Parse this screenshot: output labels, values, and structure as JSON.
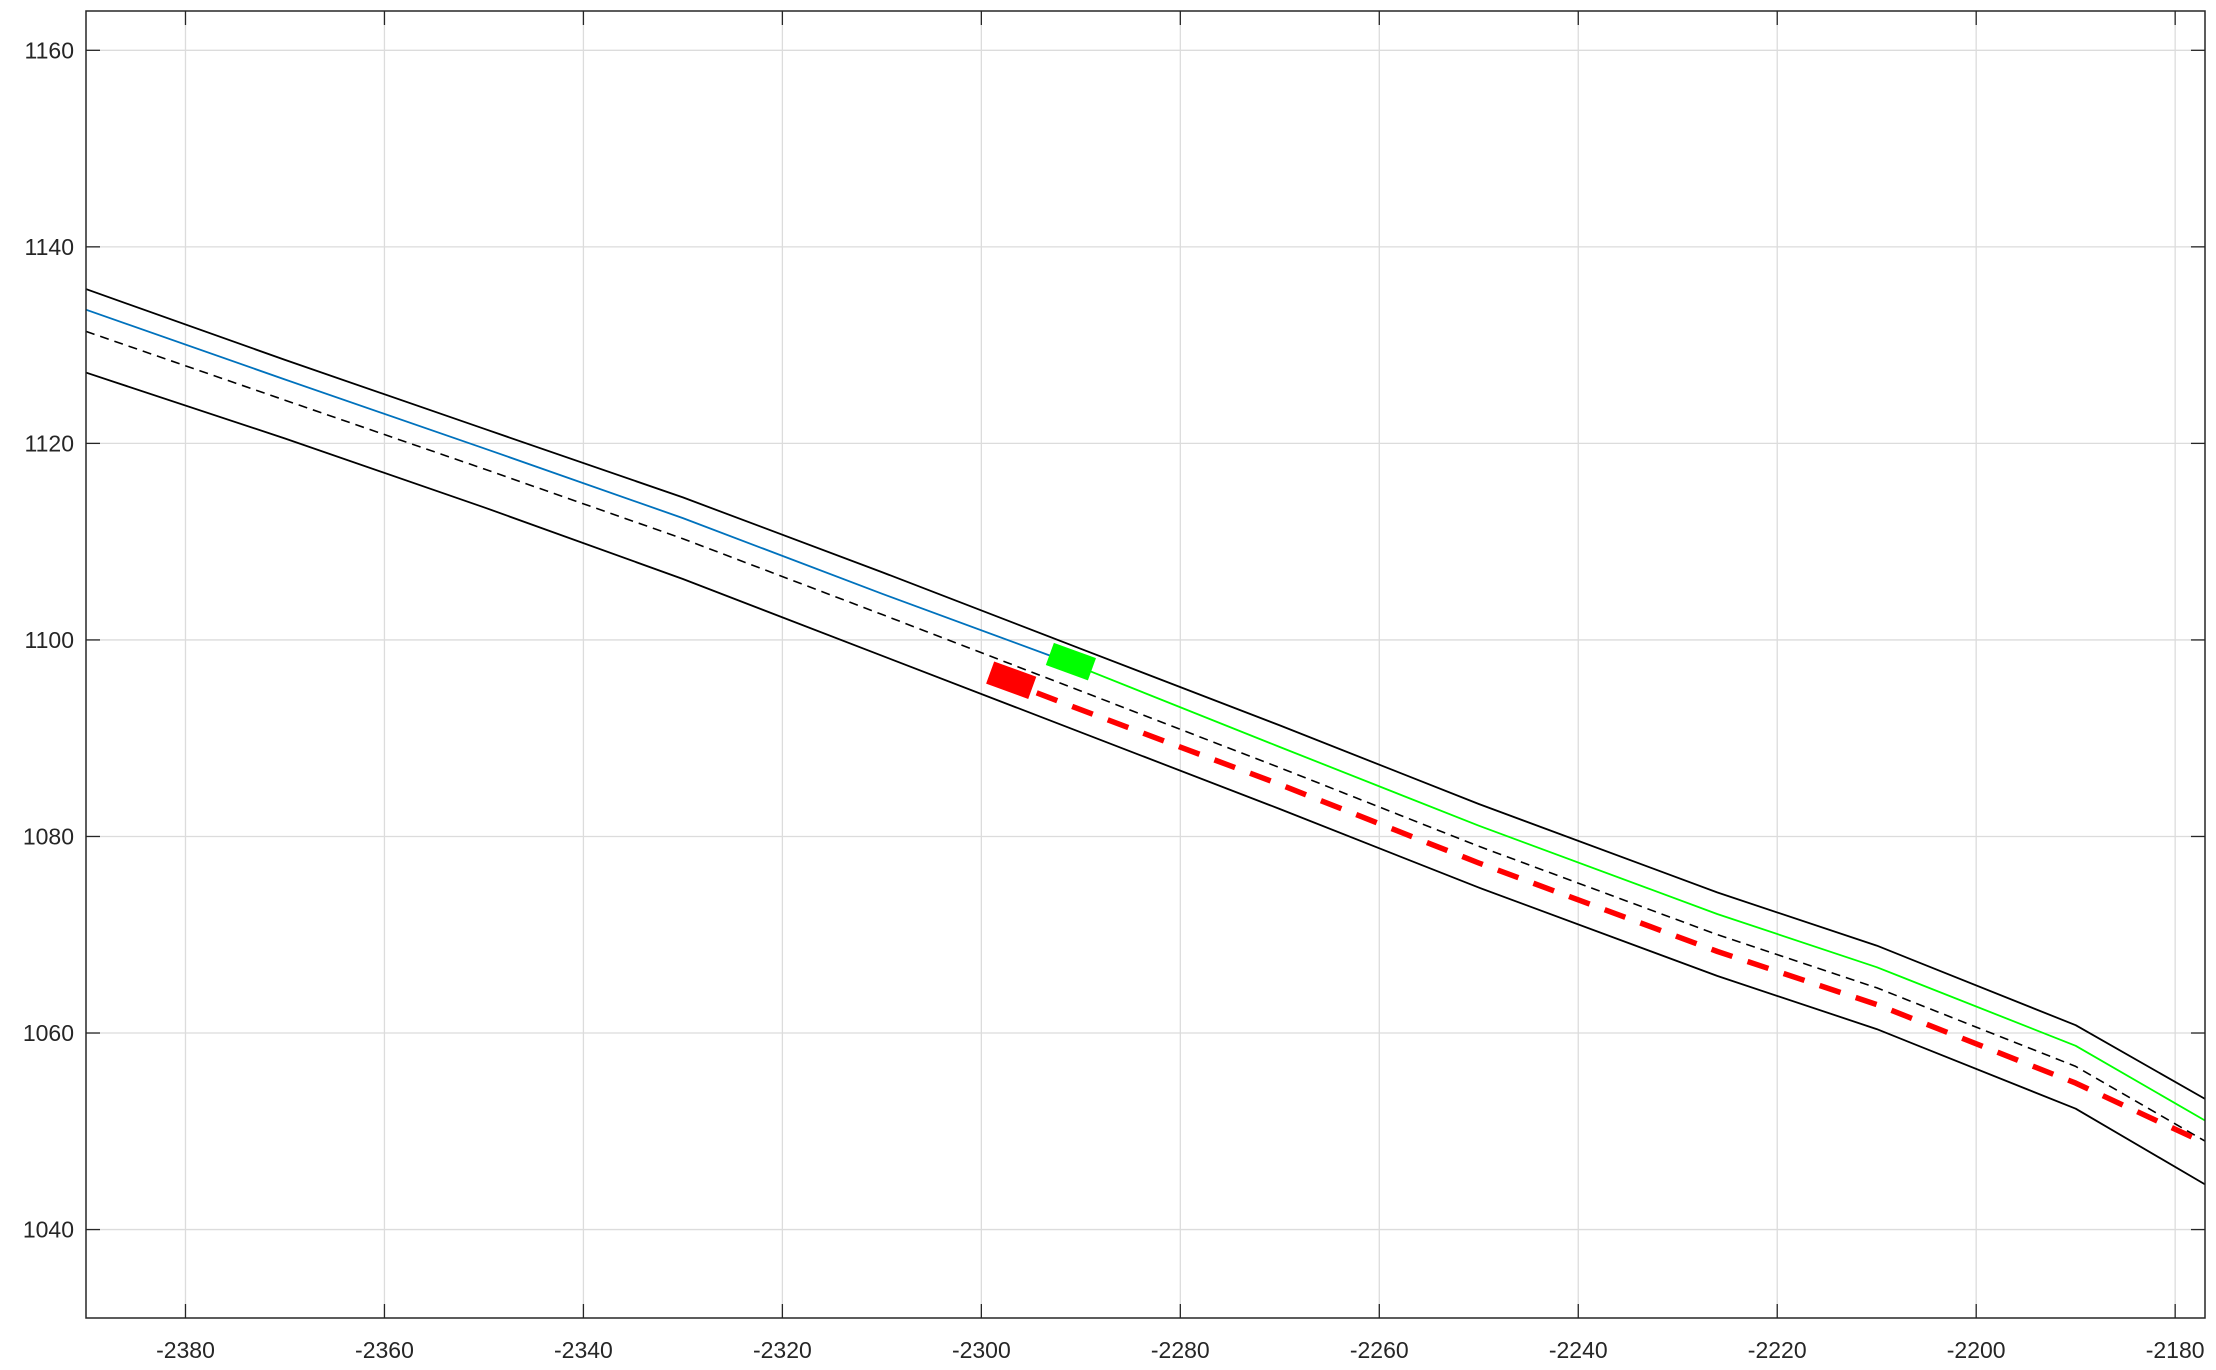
{
  "chart_data": {
    "type": "line",
    "title": "",
    "xlabel": "",
    "ylabel": "",
    "xlim": [
      -2390,
      -2177
    ],
    "ylim": [
      1031,
      1164
    ],
    "grid": true,
    "x_ticks": [
      -2380,
      -2360,
      -2340,
      -2320,
      -2300,
      -2280,
      -2260,
      -2240,
      -2220,
      -2200,
      -2180
    ],
    "y_ticks": [
      1040,
      1060,
      1080,
      1100,
      1120,
      1140,
      1160
    ],
    "x_tick_labels": [
      "-2380",
      "-2360",
      "-2340",
      "-2320",
      "-2300",
      "-2280",
      "-2260",
      "-2240",
      "-2220",
      "-2200",
      "-2180"
    ],
    "y_tick_labels": [
      "1040",
      "1060",
      "1080",
      "1100",
      "1120",
      "1140",
      "1160"
    ],
    "series": [
      {
        "role": "upper-lane-boundary",
        "color": "#000000",
        "style": "solid",
        "x": [
          -2390,
          -2370,
          -2350,
          -2330,
          -2310,
          -2290,
          -2270,
          -2250,
          -2226,
          -2210,
          -2190,
          -2177
        ],
        "y": [
          1135.7,
          1128.5,
          1121.5,
          1114.5,
          1106.9,
          1099.1,
          1091.3,
          1083.3,
          1074.3,
          1068.9,
          1060.8,
          1053.3
        ]
      },
      {
        "role": "lower-lane-boundary",
        "color": "#000000",
        "style": "solid",
        "x": [
          -2390,
          -2370,
          -2350,
          -2330,
          -2310,
          -2290,
          -2270,
          -2250,
          -2226,
          -2210,
          -2190,
          -2177
        ],
        "y": [
          1127.2,
          1120.5,
          1113.5,
          1106.2,
          1098.4,
          1090.6,
          1082.8,
          1074.8,
          1065.8,
          1060.4,
          1052.3,
          1044.6
        ]
      },
      {
        "role": "lane-centerline",
        "color": "#000000",
        "style": "dashed",
        "x": [
          -2390,
          -2370,
          -2350,
          -2330,
          -2310,
          -2290,
          -2270,
          -2250,
          -2226,
          -2210,
          -2190,
          -2177
        ],
        "y": [
          1131.4,
          1124.4,
          1117.4,
          1110.3,
          1102.6,
          1094.8,
          1087.0,
          1079.0,
          1070.0,
          1064.6,
          1056.6,
          1049.0
        ]
      },
      {
        "role": "traveled-path",
        "color": "#0072BD",
        "style": "solid",
        "x": [
          -2390,
          -2370,
          -2350,
          -2330,
          -2310,
          -2292
        ],
        "y": [
          1133.6,
          1126.5,
          1119.5,
          1112.4,
          1104.7,
          1098.0
        ]
      },
      {
        "role": "planned-path-green",
        "color": "#00FF00",
        "style": "solid",
        "x": [
          -2292,
          -2270,
          -2250,
          -2226,
          -2210,
          -2190,
          -2177
        ],
        "y": [
          1098.0,
          1089.1,
          1081.1,
          1072.1,
          1066.7,
          1058.7,
          1051.1
        ]
      },
      {
        "role": "predicted-path-red",
        "color": "#FF0000",
        "style": "dashed-thick",
        "x": [
          -2298,
          -2290,
          -2270,
          -2250,
          -2226,
          -2210,
          -2190,
          -2177
        ],
        "y": [
          1096.0,
          1092.9,
          1085.3,
          1077.3,
          1068.3,
          1062.9,
          1054.9,
          1048.8
        ]
      }
    ],
    "markers": [
      {
        "role": "ego-vehicle",
        "color": "#00FF00",
        "x": -2291,
        "y": 1097.8,
        "length": 4.5,
        "width": 2.4,
        "heading_deg": -20
      },
      {
        "role": "other-vehicle",
        "color": "#FF0000",
        "x": -2297,
        "y": 1095.9,
        "length": 4.5,
        "width": 2.4,
        "heading_deg": -20
      }
    ]
  }
}
